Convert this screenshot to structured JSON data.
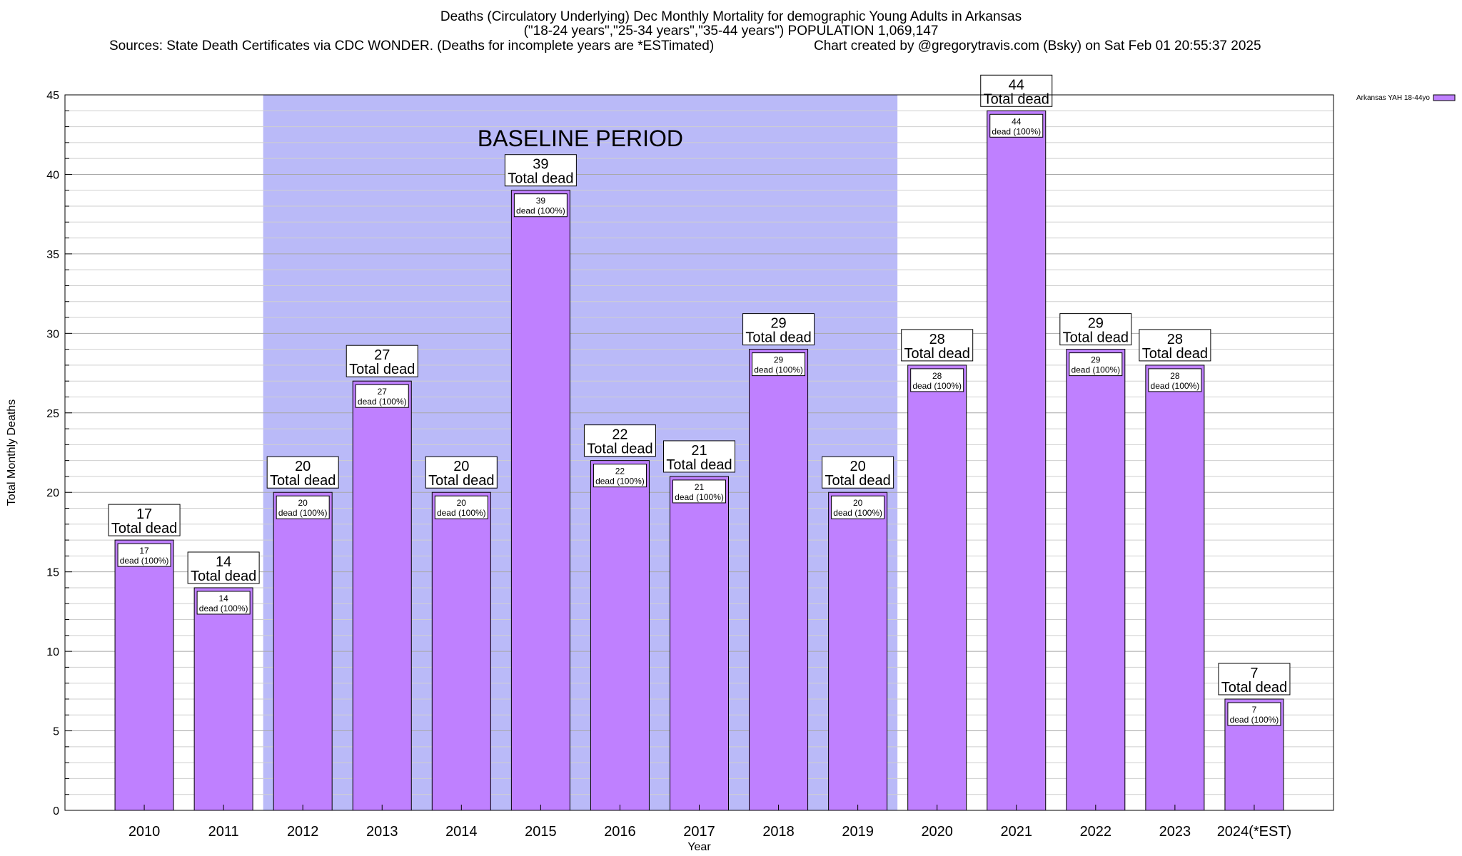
{
  "chart_data": {
    "type": "bar",
    "title": "Deaths (Circulatory Underlying) Dec Monthly Mortality for demographic Young Adults in Arkansas",
    "subtitle": "(\"18-24 years\",\"25-34 years\",\"35-44 years\") POPULATION 1,069,147",
    "sources": "Sources: State Death Certificates via CDC WONDER. (Deaths for incomplete years are *ESTimated)",
    "credit": "Chart created by @gregorytravis.com (Bsky) on Sat Feb 01 20:55:37 2025",
    "xlabel": "Year",
    "ylabel": "Total Monthly Deaths",
    "ylim": [
      0,
      45
    ],
    "yticks": [
      0,
      5,
      10,
      15,
      20,
      25,
      30,
      35,
      40,
      45
    ],
    "minor_tick_step": 1,
    "grid": true,
    "legend_position": "top-right",
    "categories": [
      "2010",
      "2011",
      "2012",
      "2013",
      "2014",
      "2015",
      "2016",
      "2017",
      "2018",
      "2019",
      "2020",
      "2021",
      "2022",
      "2023",
      "2024(*EST)"
    ],
    "series": [
      {
        "name": "Arkansas YAH 18-44yo",
        "color": "#bf80ff",
        "values": [
          17,
          14,
          20,
          27,
          20,
          39,
          22,
          21,
          29,
          20,
          28,
          44,
          29,
          28,
          7
        ]
      }
    ],
    "top_label_suffix": "Total dead",
    "inner_label_suffix": "dead (100%)",
    "annotation": {
      "text": "BASELINE PERIOD",
      "from_category": "2012",
      "to_category": "2019",
      "color": "#babaf8"
    }
  }
}
